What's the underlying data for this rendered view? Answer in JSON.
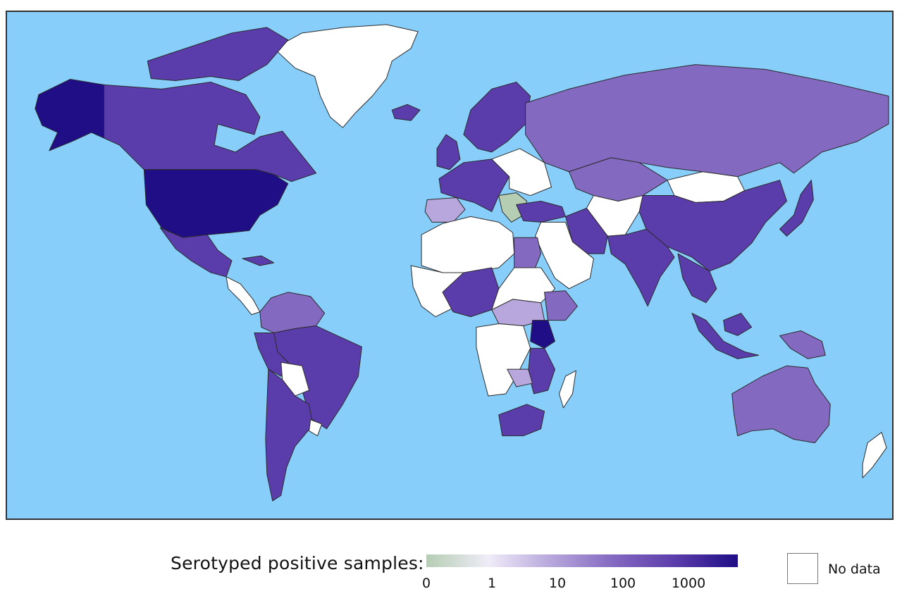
{
  "colors": {
    "ocean": "#87cefa",
    "no_data": "#ffffff",
    "scale_0": "#b5cdb3",
    "scale_1": "#f0ecf8",
    "scale_10": "#b7a7dc",
    "scale_100": "#8469c1",
    "scale_1000": "#5b3cab",
    "scale_max": "#1f0e86"
  },
  "legend": {
    "title": "Serotyped positive samples:",
    "ticks": [
      "0",
      "1",
      "10",
      "100",
      "1000"
    ],
    "no_data_label": "No data"
  },
  "regions": [
    {
      "name": "greenland",
      "level": "none"
    },
    {
      "name": "alaska",
      "level": "max"
    },
    {
      "name": "canada",
      "level": "1000"
    },
    {
      "name": "arctic-islands",
      "level": "1000"
    },
    {
      "name": "usa",
      "level": "max"
    },
    {
      "name": "mexico",
      "level": "1000"
    },
    {
      "name": "central-america",
      "level": "none"
    },
    {
      "name": "cuba",
      "level": "1000"
    },
    {
      "name": "colombia-venezuela",
      "level": "100"
    },
    {
      "name": "brazil",
      "level": "1000"
    },
    {
      "name": "peru",
      "level": "1000"
    },
    {
      "name": "bolivia",
      "level": "none"
    },
    {
      "name": "chile-argentina",
      "level": "1000"
    },
    {
      "name": "uruguay",
      "level": "none"
    },
    {
      "name": "russia",
      "level": "100"
    },
    {
      "name": "scandinavia",
      "level": "1000"
    },
    {
      "name": "iceland",
      "level": "1000"
    },
    {
      "name": "uk",
      "level": "1000"
    },
    {
      "name": "western-europe",
      "level": "1000"
    },
    {
      "name": "iberia",
      "level": "10"
    },
    {
      "name": "eastern-europe",
      "level": "none"
    },
    {
      "name": "balkans",
      "level": "0"
    },
    {
      "name": "turkey",
      "level": "1000"
    },
    {
      "name": "kazakhstan",
      "level": "100"
    },
    {
      "name": "mongolia",
      "level": "none"
    },
    {
      "name": "china",
      "level": "1000"
    },
    {
      "name": "iran",
      "level": "1000"
    },
    {
      "name": "central-asia",
      "level": "none"
    },
    {
      "name": "arabia",
      "level": "none"
    },
    {
      "name": "india",
      "level": "1000"
    },
    {
      "name": "southeast-asia",
      "level": "1000"
    },
    {
      "name": "japan",
      "level": "1000"
    },
    {
      "name": "indonesia",
      "level": "1000"
    },
    {
      "name": "papua",
      "level": "100"
    },
    {
      "name": "australia",
      "level": "100"
    },
    {
      "name": "new-zealand",
      "level": "none"
    },
    {
      "name": "north-africa",
      "level": "none"
    },
    {
      "name": "egypt",
      "level": "100"
    },
    {
      "name": "west-africa",
      "level": "none"
    },
    {
      "name": "nigeria-region",
      "level": "1000"
    },
    {
      "name": "central-africa",
      "level": "none"
    },
    {
      "name": "sudan-region",
      "level": "10"
    },
    {
      "name": "ethiopia",
      "level": "100"
    },
    {
      "name": "kenya",
      "level": "max"
    },
    {
      "name": "tanzania-mozambique",
      "level": "1000"
    },
    {
      "name": "zambia",
      "level": "10"
    },
    {
      "name": "southern-africa",
      "level": "1000"
    },
    {
      "name": "madagascar",
      "level": "none"
    }
  ]
}
